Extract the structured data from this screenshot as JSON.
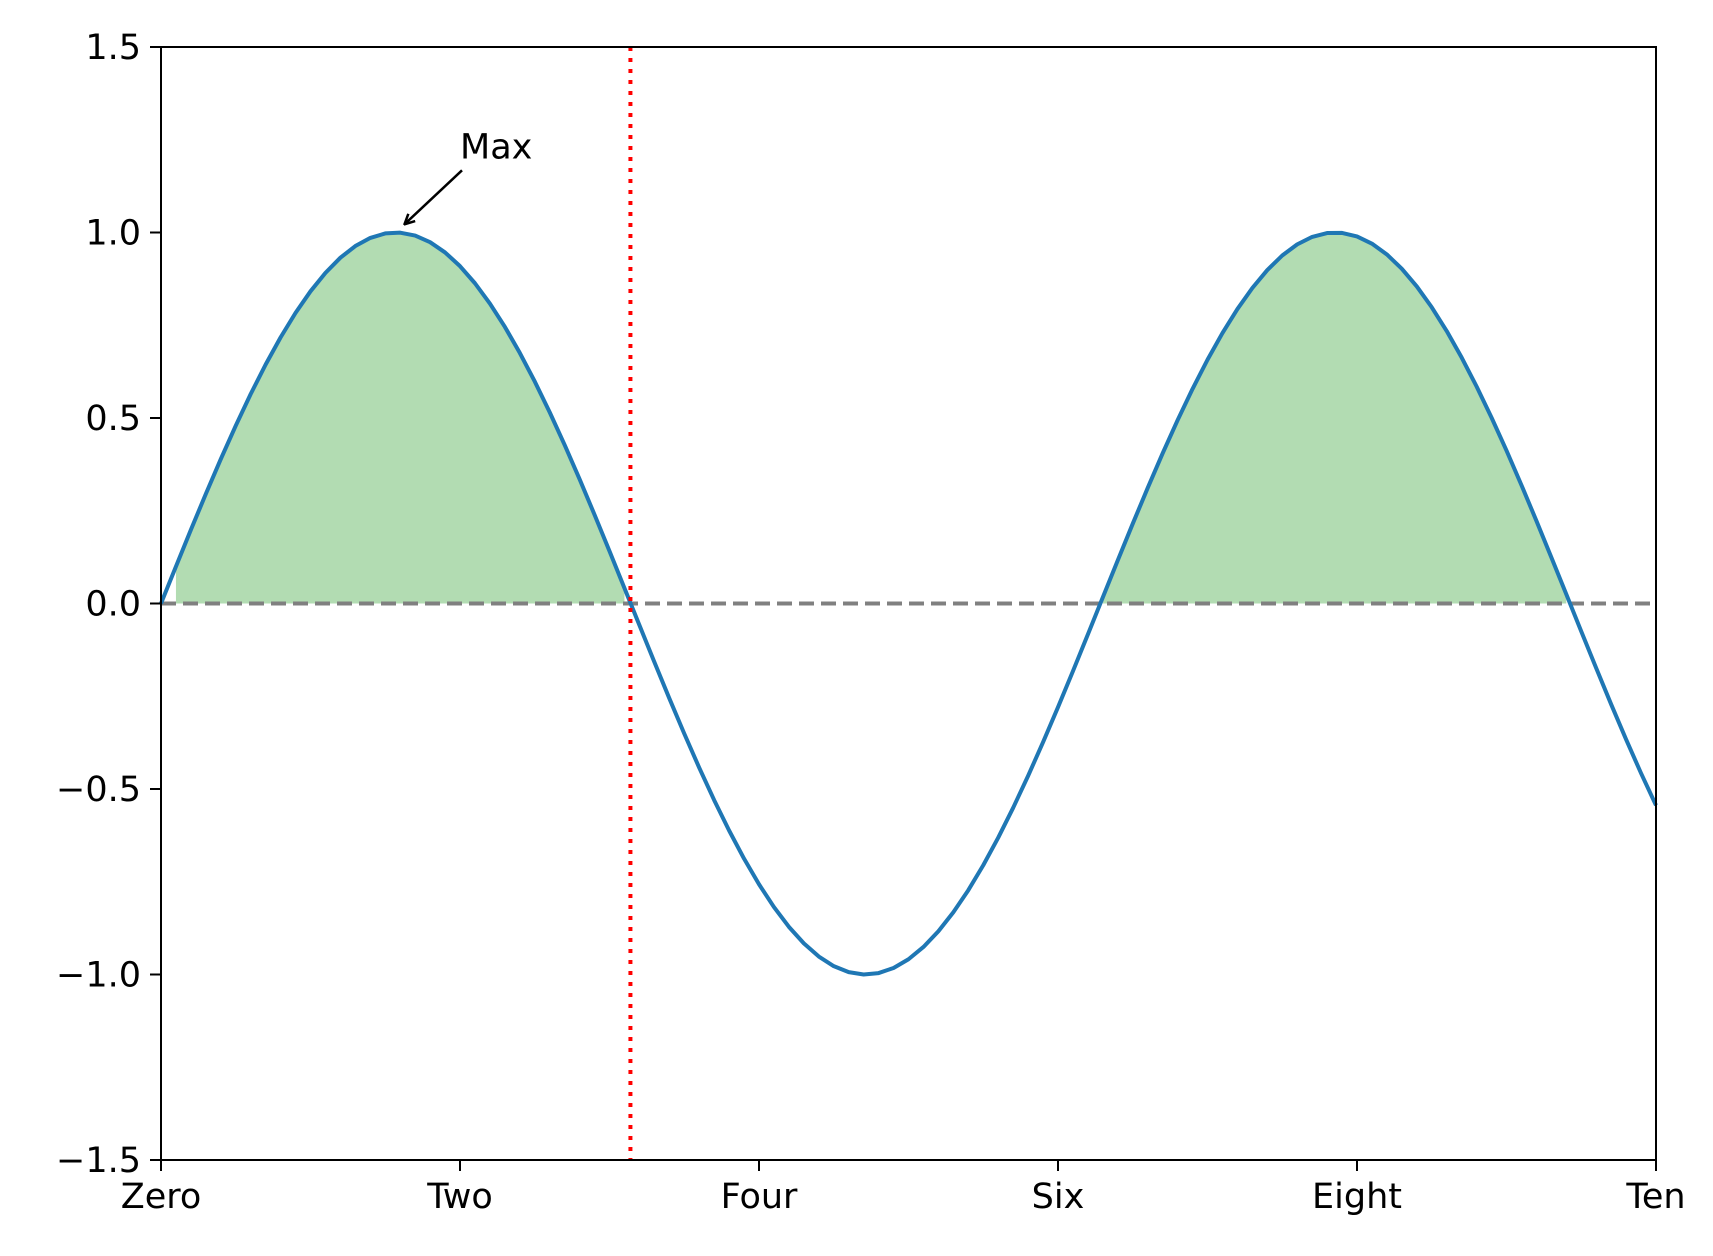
{
  "chart_data": {
    "type": "line",
    "title": "",
    "xlabel": "",
    "ylabel": "",
    "function": "sin(x)",
    "xlim": [
      0,
      10
    ],
    "ylim": [
      -1.5,
      1.5
    ],
    "xticks": [
      {
        "value": 0,
        "label": "Zero"
      },
      {
        "value": 2,
        "label": "Two"
      },
      {
        "value": 4,
        "label": "Four"
      },
      {
        "value": 6,
        "label": "Six"
      },
      {
        "value": 8,
        "label": "Eight"
      },
      {
        "value": 10,
        "label": "Ten"
      }
    ],
    "yticks": [
      {
        "value": -1.5,
        "label": "−1.5"
      },
      {
        "value": -1.0,
        "label": "−1.0"
      },
      {
        "value": -0.5,
        "label": "−0.5"
      },
      {
        "value": 0.0,
        "label": "0.0"
      },
      {
        "value": 0.5,
        "label": "0.5"
      },
      {
        "value": 1.0,
        "label": "1.0"
      },
      {
        "value": 1.5,
        "label": "1.5"
      }
    ],
    "series": [
      {
        "color": "#1f77b4",
        "x_range": [
          0,
          10
        ],
        "samples": 101
      }
    ],
    "fill": {
      "where": "y > 0",
      "color": "#2ca02c",
      "alpha": 0.365
    },
    "hlines": [
      {
        "y": 0,
        "color": "#808080",
        "style": "dashed"
      }
    ],
    "vlines": [
      {
        "x": 3.14,
        "color": "#ff0000",
        "style": "dotted"
      }
    ],
    "annotations": [
      {
        "text": "Max",
        "xy": [
          1.57,
          1.0
        ],
        "xytext": [
          2.0,
          1.2
        ]
      }
    ],
    "grid": false,
    "legend": "none"
  }
}
